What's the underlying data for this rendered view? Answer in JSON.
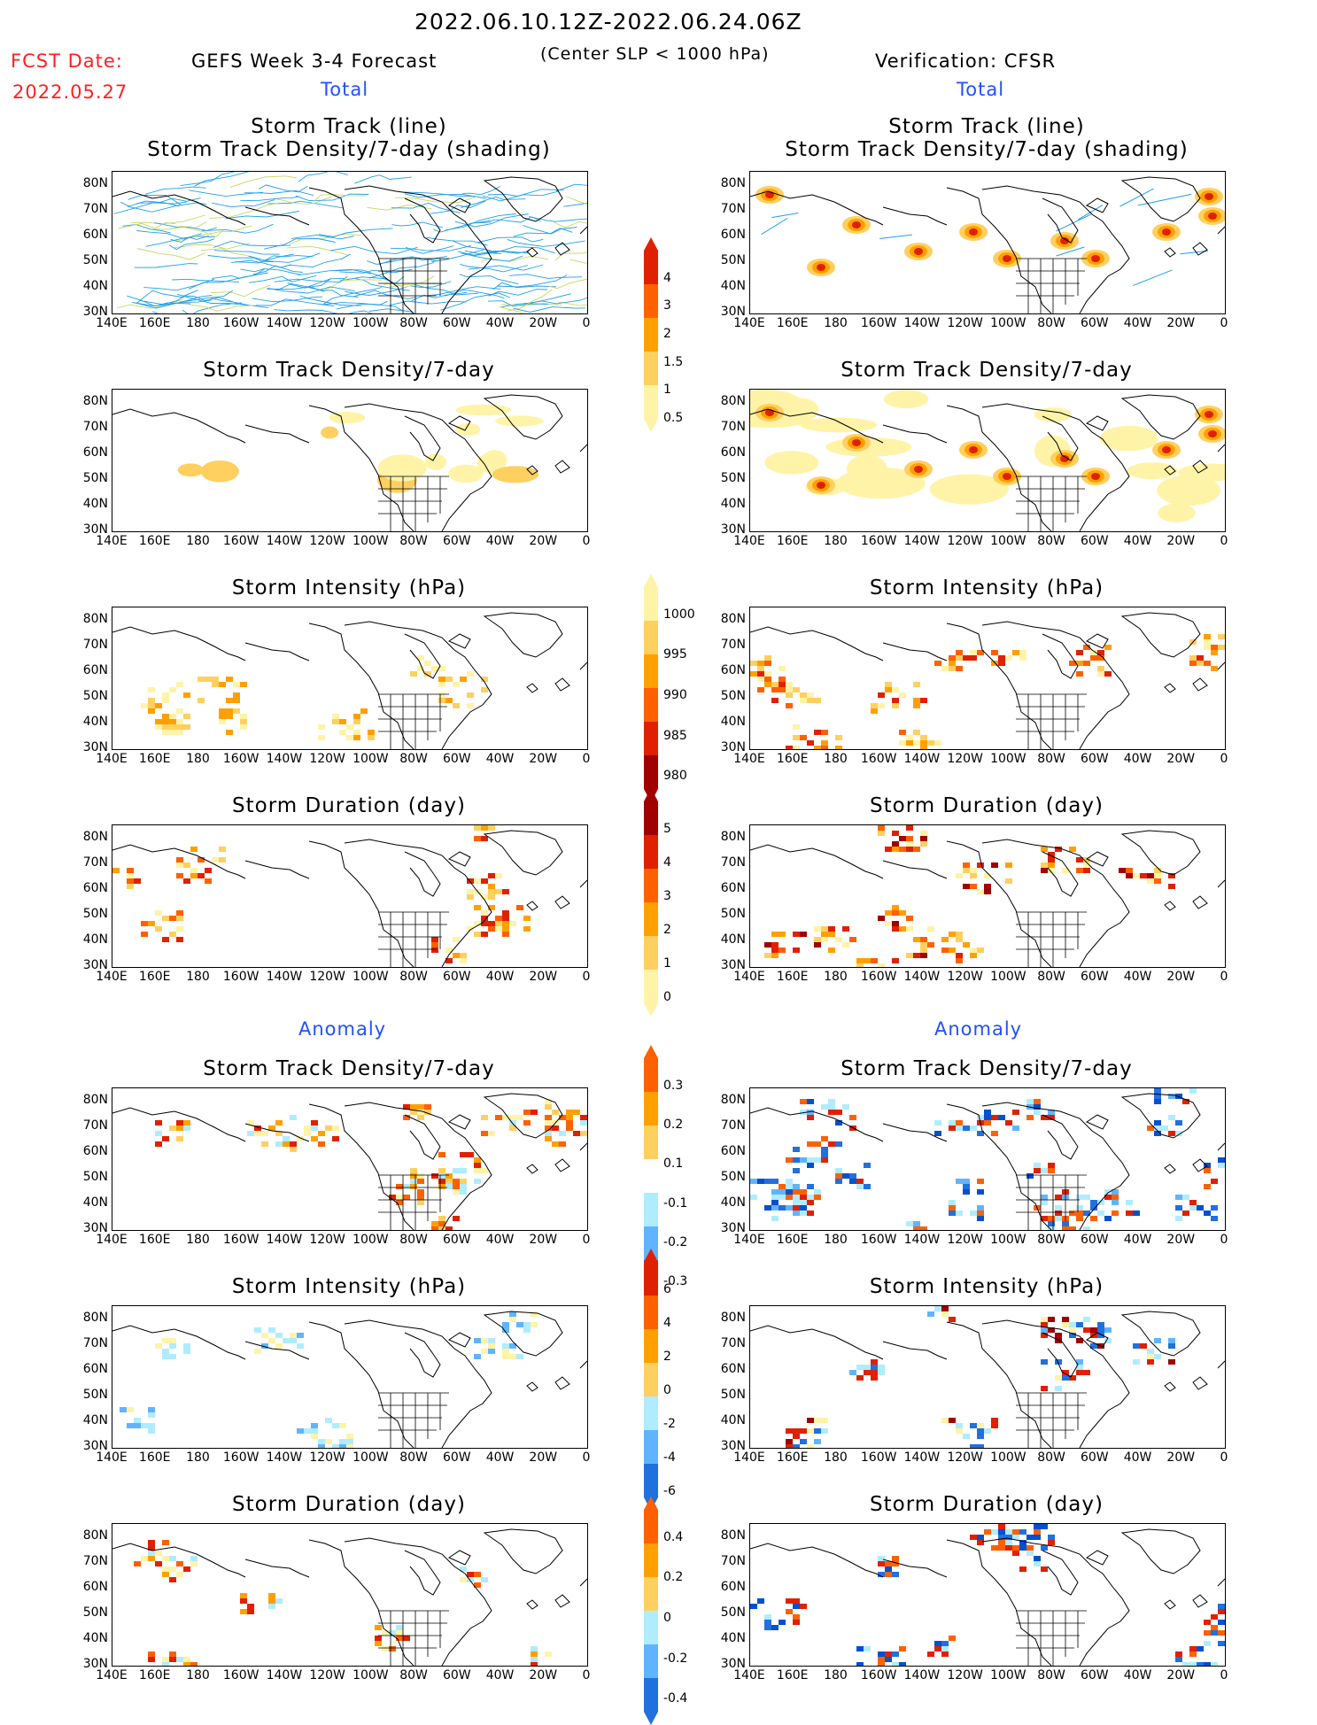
{
  "header": {
    "period": "2022.06.10.12Z-2022.06.24.06Z",
    "fcst_label": "FCST Date:",
    "fcst_date": "2022.05.27",
    "left_title": "GEFS Week 3-4 Forecast",
    "center_note": "(Center SLP < 1000 hPa)",
    "right_title": "Verification: CFSR",
    "total_label": "Total",
    "anomaly_label": "Anomaly"
  },
  "panel_titles": {
    "track": [
      "Storm Track (line)",
      "Storm Track Density/7-day (shading)"
    ],
    "density": "Storm Track Density/7-day",
    "intensity": "Storm Intensity (hPa)",
    "duration": "Storm Duration (day)"
  },
  "axes": {
    "lat_ticks": [
      "80N",
      "70N",
      "60N",
      "50N",
      "40N",
      "30N"
    ],
    "lon_ticks": [
      "140E",
      "160E",
      "180",
      "160W",
      "140W",
      "120W",
      "100W",
      "80W",
      "60W",
      "40W",
      "20W",
      "0"
    ]
  },
  "colorbars": {
    "density_total": [
      "4",
      "3",
      "2",
      "1.5",
      "1",
      "0.5"
    ],
    "intensity_total": [
      "1000",
      "995",
      "990",
      "985",
      "980"
    ],
    "duration_total": [
      "5",
      "4",
      "3",
      "2",
      "1",
      "0"
    ],
    "density_anom": [
      "0.3",
      "0.2",
      "0.1",
      "-0.1",
      "-0.2",
      "-0.3"
    ],
    "intensity_anom": [
      "6",
      "4",
      "2",
      "0",
      "-2",
      "-4",
      "-6"
    ],
    "duration_anom": [
      "0.4",
      "0.2",
      "0",
      "-0.2",
      "-0.4"
    ]
  },
  "colors": {
    "pale_yellow": "#fff3a8",
    "light_orange": "#ffd060",
    "orange": "#ffa000",
    "dark_orange": "#ff6000",
    "red": "#e02000",
    "dark_red": "#a00000",
    "light_blue": "#b0ecff",
    "mid_blue": "#60b4ff",
    "blue": "#2070e0",
    "dark_blue": "#0050d0",
    "track_line": "#1ea0e8"
  }
}
